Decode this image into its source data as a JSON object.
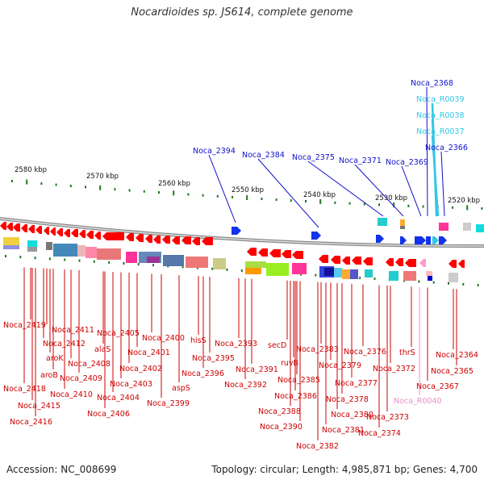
{
  "title": "Nocardioides sp. JS614, complete genome",
  "footer": {
    "accession": "Accession: NC_008699",
    "summary": "Topology: circular; Length: 4,985,871 bp; Genes: 4,700"
  },
  "colors": {
    "gene_label": "#cc0000",
    "top_label": "#1010c8",
    "rna_label": "#33c6e8",
    "pink_label": "#e890c8",
    "ruler": "#227722"
  },
  "kbp_ticks": [
    "2580 kbp",
    "2570 kbp",
    "2560 kbp",
    "2550 kbp",
    "2540 kbp",
    "2530 kbp",
    "2520 kbp"
  ],
  "top_labels": [
    {
      "text": "Noca_2368",
      "kind": "gene"
    },
    {
      "text": "Noca_R0039",
      "kind": "rna"
    },
    {
      "text": "Noca_R0038",
      "kind": "rna"
    },
    {
      "text": "Noca_R0037",
      "kind": "rna"
    },
    {
      "text": "Noca_2366",
      "kind": "gene"
    },
    {
      "text": "Noca_2394",
      "kind": "gene"
    },
    {
      "text": "Noca_2384",
      "kind": "gene"
    },
    {
      "text": "Noca_2375",
      "kind": "gene"
    },
    {
      "text": "Noca_2371",
      "kind": "gene"
    },
    {
      "text": "Noca_2369",
      "kind": "gene"
    }
  ],
  "bottom_labels": [
    "Noca_2419",
    "Noca_2411",
    "Noca_2412",
    "aroK",
    "aroB",
    "Noca_2418",
    "Noca_2415",
    "Noca_2416",
    "Noca_2408",
    "Noca_2409",
    "Noca_2410",
    "alaS",
    "Noca_2405",
    "Noca_2401",
    "Noca_2402",
    "Noca_2403",
    "Noca_2404",
    "Noca_2406",
    "Noca_2400",
    "aspS",
    "Noca_2399",
    "hisS",
    "Noca_2395",
    "Noca_2396",
    "Noca_2393",
    "Noca_2391",
    "Noca_2392",
    "secD",
    "ruvB",
    "Noca_2385",
    "Noca_2386",
    "Noca_2388",
    "Noca_2390",
    "Noca_2383",
    "Noca_2379",
    "Noca_2377",
    "Noca_2378",
    "Noca_2380",
    "Noca_2381",
    "Noca_2382",
    "Noca_2376",
    "Noca_2372",
    "Noca_2373",
    "Noca_2374",
    "thrS",
    "Noca_2367",
    "Noca_R0040",
    "Noca_2364",
    "Noca_2365"
  ]
}
